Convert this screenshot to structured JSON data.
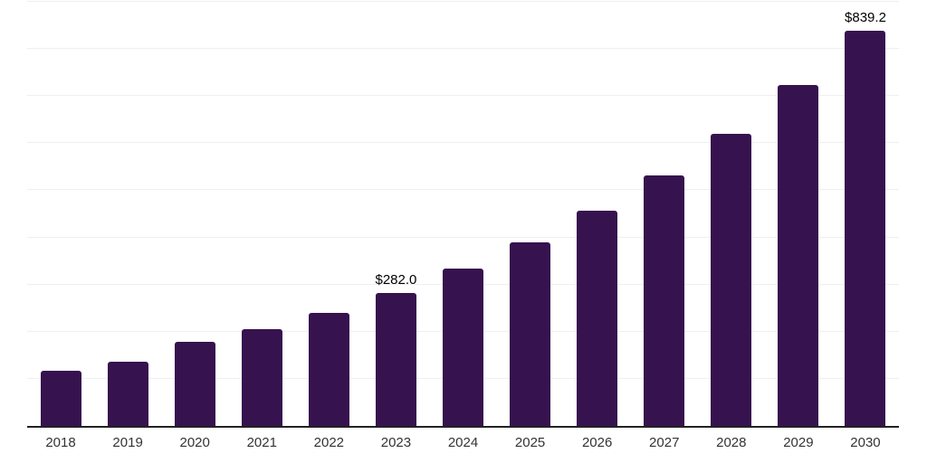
{
  "chart_data": {
    "type": "bar",
    "title": "",
    "categories": [
      "2018",
      "2019",
      "2020",
      "2021",
      "2022",
      "2023",
      "2024",
      "2025",
      "2026",
      "2027",
      "2028",
      "2029",
      "2030"
    ],
    "values": [
      118,
      137,
      179,
      205,
      240,
      282.0,
      334,
      390,
      456,
      531,
      620,
      724,
      839.2
    ],
    "data_labels": [
      "",
      "",
      "",
      "",
      "",
      "$282.0",
      "",
      "",
      "",
      "",
      "",
      "",
      "$839.2"
    ],
    "ylim": [
      0,
      900
    ],
    "gridline_step": 100,
    "grid": "horizontal-only",
    "legend": "none",
    "y_axis_labels_visible": false,
    "bar_color": "#36124e",
    "gridline_color": "#efefef",
    "axis_line_color": "#222222",
    "tick_label_color": "#333333",
    "data_label_color": "#000000"
  }
}
